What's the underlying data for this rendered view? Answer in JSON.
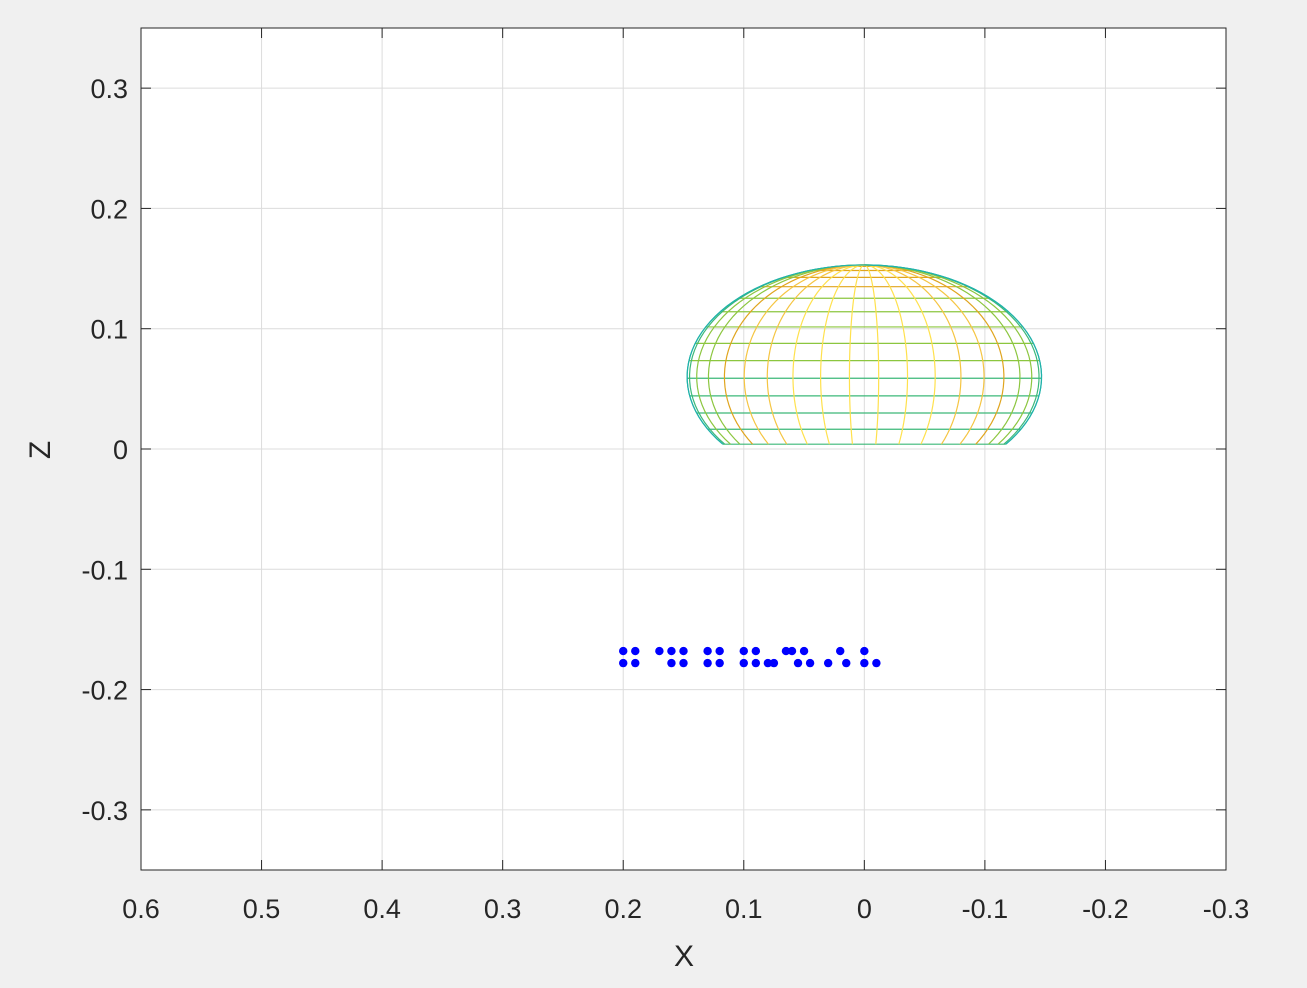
{
  "figure": {
    "background_color": "#f0f0f0",
    "axes_background": "#ffffff"
  },
  "chart_data": {
    "type": "scatter",
    "view": "3-D plot viewed along the Y axis (X-Z projection)",
    "title": "",
    "xlabel": "X",
    "ylabel": "Z",
    "xlim": [
      0.6,
      -0.3
    ],
    "ylim": [
      -0.35,
      0.35
    ],
    "x_reversed": true,
    "xticks": [
      0.6,
      0.5,
      0.4,
      0.3,
      0.2,
      0.1,
      0,
      -0.1,
      -0.2,
      -0.3
    ],
    "xtick_labels": [
      "0.6",
      "0.5",
      "0.4",
      "0.3",
      "0.2",
      "0.1",
      "0",
      "-0.1",
      "-0.2",
      "-0.3"
    ],
    "yticks": [
      0.3,
      0.2,
      0.1,
      0,
      -0.1,
      -0.2,
      -0.3
    ],
    "ytick_labels": [
      "0.3",
      "0.2",
      "0.1",
      "0",
      "-0.1",
      "-0.2",
      "-0.3"
    ],
    "grid": true,
    "legend": null,
    "surface": {
      "kind": "truncated ellipsoid mesh",
      "center_x": 0,
      "center_z": 0.06,
      "semi_axis_x": 0.147,
      "semi_axis_z": 0.093,
      "z_cutoff": 0.004,
      "meridian_count": 20,
      "latitude_count": 14,
      "colormap": [
        "#20b2aa",
        "#3cb878",
        "#8cc63f",
        "#e0a51e",
        "#f5c542",
        "#ffe14d"
      ]
    },
    "points": {
      "color": "#0000ff",
      "x": [
        0.2,
        0.19,
        0.17,
        0.16,
        0.15,
        0.13,
        0.12,
        0.1,
        0.09,
        0.075,
        0.06,
        0.05,
        0.03,
        0.02,
        0,
        -0.01,
        0.2,
        0.19,
        0.16,
        0.15,
        0.13,
        0.12,
        0.1,
        0.09,
        0.08,
        0.065,
        0.055,
        0.045,
        0.015,
        0.0
      ],
      "z": [
        -0.168,
        -0.168,
        -0.168,
        -0.168,
        -0.168,
        -0.168,
        -0.168,
        -0.168,
        -0.168,
        -0.178,
        -0.168,
        -0.168,
        -0.178,
        -0.168,
        -0.168,
        -0.178,
        -0.178,
        -0.178,
        -0.178,
        -0.178,
        -0.178,
        -0.178,
        -0.178,
        -0.178,
        -0.178,
        -0.168,
        -0.178,
        -0.178,
        -0.178,
        -0.178
      ]
    }
  }
}
